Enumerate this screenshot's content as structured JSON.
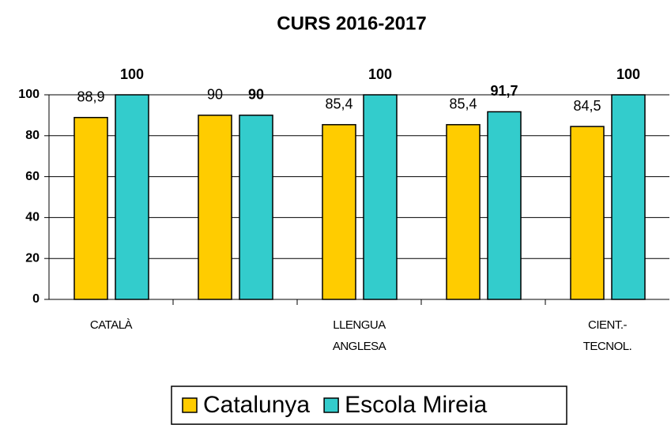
{
  "chart_data": {
    "type": "bar",
    "title": "CURS 2016-2017",
    "categories": [
      "CATALÀ",
      null,
      "LLENGUA ANGLESA",
      null,
      "CIENT.- TECNOL."
    ],
    "series": [
      {
        "name": "Catalunya",
        "color": "#ffcc00",
        "values": [
          88.9,
          90,
          85.4,
          85.4,
          84.5
        ],
        "value_labels": [
          "88,9",
          "90",
          "85,4",
          "85,4",
          "84,5"
        ]
      },
      {
        "name": "Escola Mireia",
        "color": "#33cccc",
        "values": [
          100,
          90,
          100,
          91.7,
          100
        ],
        "value_labels": [
          "100",
          "90",
          "100",
          "91,7",
          "100"
        ]
      }
    ],
    "ylim": [
      0,
      100
    ],
    "yticks": [
      0,
      20,
      40,
      60,
      80,
      100
    ],
    "grid": true,
    "legend": "bottom"
  }
}
